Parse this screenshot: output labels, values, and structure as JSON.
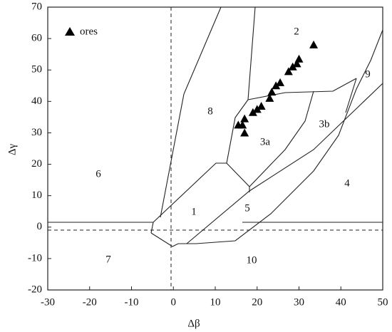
{
  "chart_data": {
    "type": "scatter",
    "xlabel": "Δβ",
    "ylabel": "Δγ",
    "xlim": [
      -30,
      50
    ],
    "ylim": [
      -20,
      70
    ],
    "xticks": [
      -30,
      -20,
      -10,
      0,
      10,
      20,
      30,
      40,
      50
    ],
    "yticks": [
      -20,
      -10,
      0,
      10,
      20,
      30,
      40,
      50,
      60,
      70
    ],
    "legend": "upper left",
    "series": [
      {
        "name": "ores",
        "color": "#000000",
        "x": [
          33.5,
          30,
          29.5,
          28.5,
          27.5,
          25.5,
          24.5,
          23.5,
          23,
          21,
          20,
          19,
          17,
          16.5,
          15.5,
          17
        ],
        "values": [
          58,
          53.5,
          52,
          51,
          49.5,
          46,
          45,
          43,
          41,
          38.5,
          37.5,
          36.5,
          34.5,
          32.5,
          32.5,
          30
        ]
      }
    ],
    "annotations": [
      "1",
      "2",
      "3a",
      "3b",
      "4",
      "5",
      "6",
      "7",
      "8",
      "9",
      "10"
    ]
  }
}
